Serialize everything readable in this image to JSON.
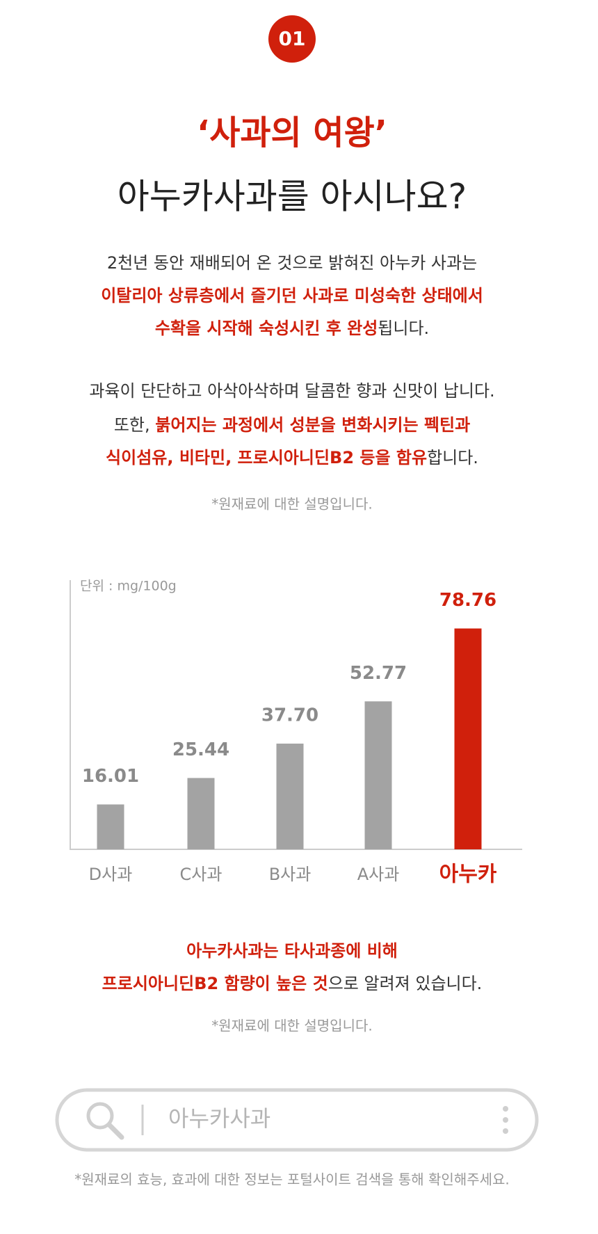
{
  "badge": "01",
  "heading": {
    "line1": "‘사과의 여왕’",
    "line2": "아누카사과를 아시나요?"
  },
  "intro": [
    [
      {
        "text": "2천년 동안 재배되어 온 것으로 밝혀진 아누카 사과는",
        "emphasis": false
      }
    ],
    [
      {
        "text": "이탈리아 상류층에서 즐기던 사과로 미성숙한 상태에서",
        "emphasis": true
      }
    ],
    [
      {
        "text": "수확을 시작해 숙성시킨 후 완성",
        "emphasis": true
      },
      {
        "text": "됩니다.",
        "emphasis": false
      }
    ],
    [
      {
        "text": "과육이 단단하고 아삭아삭하며 달콤한 향과 신맛이 납니다.",
        "emphasis": false
      }
    ],
    [
      {
        "text": "또한, ",
        "emphasis": false
      },
      {
        "text": "붉어지는 과정에서 성분을 변화시키는 펙틴과",
        "emphasis": true
      }
    ],
    [
      {
        "text": "식이섬유, 비타민, 프로시아니딘B2 등을 함유",
        "emphasis": true
      },
      {
        "text": "합니다.",
        "emphasis": false
      }
    ]
  ],
  "intro_note": "*원재료에 대한 설명입니다.",
  "chart_data": {
    "type": "bar",
    "unit_label": "단위 : mg/100g",
    "categories": [
      "D사과",
      "C사과",
      "B사과",
      "A사과",
      "아누카"
    ],
    "values": [
      16.01,
      25.44,
      37.7,
      52.77,
      78.76
    ],
    "value_labels": [
      "16.01",
      "25.44",
      "37.70",
      "52.77",
      "78.76"
    ],
    "colors": [
      "#a3a3a3",
      "#a3a3a3",
      "#a3a3a3",
      "#a3a3a3",
      "#d0200c"
    ],
    "label_colors": [
      "#8a8a8a",
      "#8a8a8a",
      "#8a8a8a",
      "#8a8a8a",
      "#d0200c"
    ],
    "ylim": [
      0,
      96
    ]
  },
  "summary": [
    [
      {
        "text": "아누카사과는 타사과종에 비해",
        "emphasis": true
      }
    ],
    [
      {
        "text": "프로시아니딘B2 함량이 높은 것",
        "emphasis": true
      },
      {
        "text": "으로 알려져 있습니다.",
        "emphasis": false
      }
    ]
  ],
  "summary_note": "*원재료에 대한 설명입니다.",
  "search": {
    "placeholder": "아누카사과"
  },
  "footer": "*원재료의 효능, 효과에 대한 정보는 포털사이트 검색을 통해 확인해주세요."
}
